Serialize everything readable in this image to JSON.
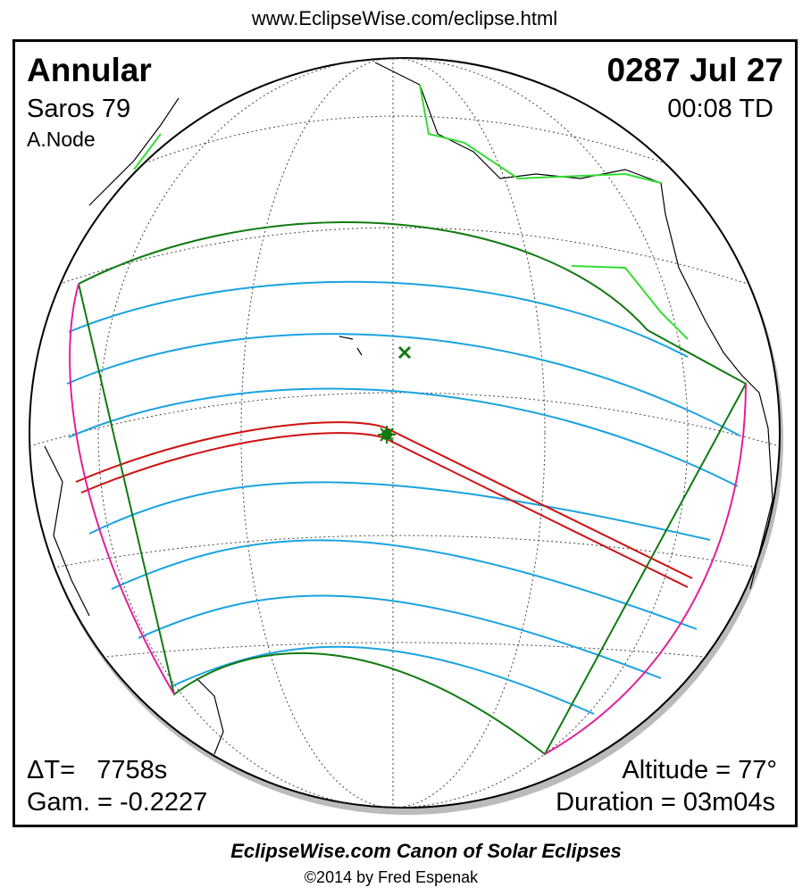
{
  "header": {
    "url": "www.EclipseWise.com/eclipse.html"
  },
  "eclipse": {
    "type": "Annular",
    "saros": "Saros  79",
    "node": "A.Node",
    "date": "0287 Jul 27",
    "time": "00:08 TD",
    "delta_t": "ΔT=   7758s",
    "gamma": "Gam. = -0.2227",
    "altitude": "Altitude = 77°",
    "duration": "Duration = 03m04s"
  },
  "footer": {
    "title": "EclipseWise.com Canon of Solar Eclipses",
    "copyright": "©2014 by Fred Espenak"
  }
}
